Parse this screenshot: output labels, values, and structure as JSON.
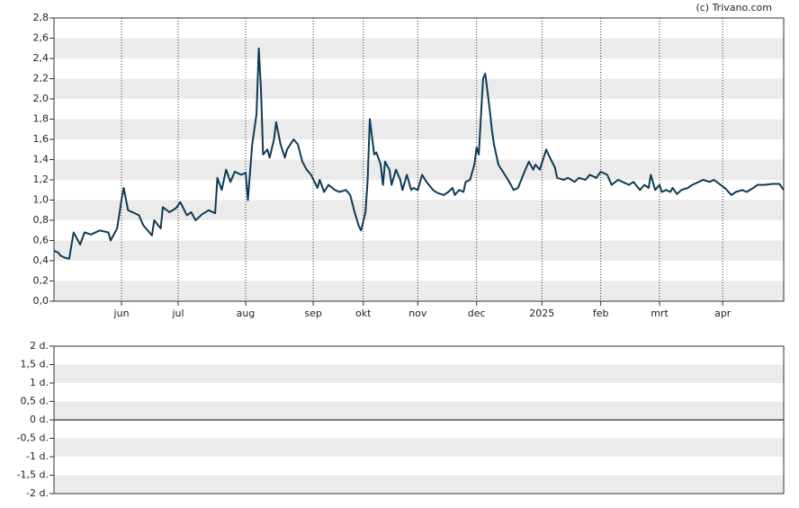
{
  "chart_data": [
    {
      "type": "line",
      "source": "(c) Trivano.com",
      "xlim": [
        0,
        335
      ],
      "xticks": [
        {
          "value": 31,
          "label": "jun"
        },
        {
          "value": 57,
          "label": "jul"
        },
        {
          "value": 88,
          "label": "aug"
        },
        {
          "value": 119,
          "label": "sep"
        },
        {
          "value": 142,
          "label": "okt"
        },
        {
          "value": 167,
          "label": "nov"
        },
        {
          "value": 194,
          "label": "dec"
        },
        {
          "value": 224,
          "label": "2025"
        },
        {
          "value": 251,
          "label": "feb"
        },
        {
          "value": 278,
          "label": "mrt"
        },
        {
          "value": 307,
          "label": "apr"
        }
      ],
      "ylim": [
        0,
        2.8
      ],
      "yticks": [
        {
          "value": 0,
          "label": "0,0"
        },
        {
          "value": 0.2,
          "label": "0,2"
        },
        {
          "value": 0.4,
          "label": "0,4"
        },
        {
          "value": 0.6,
          "label": "0,6"
        },
        {
          "value": 0.8,
          "label": "0,8"
        },
        {
          "value": 1.0,
          "label": "1,0"
        },
        {
          "value": 1.2,
          "label": "1,2"
        },
        {
          "value": 1.4,
          "label": "1,4"
        },
        {
          "value": 1.6,
          "label": "1,6"
        },
        {
          "value": 1.8,
          "label": "1,8"
        },
        {
          "value": 2.0,
          "label": "2,0"
        },
        {
          "value": 2.2,
          "label": "2,2"
        },
        {
          "value": 2.4,
          "label": "2,4"
        },
        {
          "value": 2.6,
          "label": "2,6"
        },
        {
          "value": 2.8,
          "label": "2,8"
        }
      ],
      "grid": true,
      "series": [
        {
          "color": "#0d3b55",
          "x": [
            0,
            2,
            3,
            5,
            7,
            9,
            12,
            14,
            17,
            21,
            25,
            26,
            29,
            31,
            32,
            34,
            36,
            39,
            41,
            45,
            46,
            49,
            50,
            53,
            56,
            58,
            61,
            63,
            65,
            68,
            71,
            74,
            75,
            77,
            79,
            81,
            83,
            86,
            88,
            89,
            91,
            93,
            94,
            95,
            96,
            98,
            99,
            101,
            102,
            104,
            106,
            107,
            110,
            112,
            114,
            116,
            118,
            121,
            122,
            124,
            126,
            129,
            131,
            134,
            136,
            138,
            140,
            141,
            143,
            144,
            145,
            147,
            148,
            150,
            151,
            152,
            154,
            155,
            157,
            159,
            160,
            162,
            164,
            165,
            167,
            169,
            171,
            174,
            176,
            179,
            181,
            183,
            184,
            186,
            188,
            189,
            191,
            193,
            194,
            195,
            197,
            198,
            200,
            201,
            202,
            204,
            207,
            209,
            211,
            213,
            216,
            218,
            220,
            221,
            223,
            226,
            227,
            230,
            231,
            234,
            236,
            239,
            241,
            244,
            246,
            249,
            251,
            254,
            256,
            259,
            261,
            264,
            266,
            269,
            271,
            273,
            274,
            276,
            278,
            279,
            281,
            283,
            284,
            286,
            288,
            291,
            293,
            296,
            298,
            301,
            303,
            306,
            308,
            311,
            313,
            316,
            318,
            321,
            323,
            326,
            330,
            333,
            335
          ],
          "values": [
            0.5,
            0.48,
            0.45,
            0.43,
            0.42,
            0.68,
            0.56,
            0.68,
            0.66,
            0.7,
            0.68,
            0.6,
            0.72,
            1.0,
            1.12,
            0.9,
            0.88,
            0.85,
            0.75,
            0.65,
            0.8,
            0.72,
            0.93,
            0.88,
            0.92,
            0.98,
            0.85,
            0.88,
            0.8,
            0.86,
            0.9,
            0.87,
            1.22,
            1.1,
            1.3,
            1.18,
            1.28,
            1.25,
            1.27,
            1.0,
            1.55,
            1.85,
            2.5,
            2.1,
            1.45,
            1.5,
            1.42,
            1.6,
            1.77,
            1.55,
            1.42,
            1.5,
            1.6,
            1.55,
            1.38,
            1.3,
            1.25,
            1.12,
            1.2,
            1.08,
            1.15,
            1.1,
            1.08,
            1.1,
            1.05,
            0.88,
            0.74,
            0.7,
            0.88,
            1.2,
            1.8,
            1.45,
            1.47,
            1.35,
            1.15,
            1.38,
            1.3,
            1.15,
            1.3,
            1.2,
            1.1,
            1.25,
            1.1,
            1.12,
            1.1,
            1.25,
            1.18,
            1.1,
            1.07,
            1.05,
            1.08,
            1.12,
            1.05,
            1.1,
            1.08,
            1.18,
            1.2,
            1.35,
            1.52,
            1.45,
            2.2,
            2.25,
            1.9,
            1.7,
            1.55,
            1.35,
            1.25,
            1.18,
            1.1,
            1.12,
            1.28,
            1.38,
            1.3,
            1.35,
            1.3,
            1.5,
            1.45,
            1.32,
            1.22,
            1.2,
            1.22,
            1.18,
            1.22,
            1.2,
            1.25,
            1.22,
            1.28,
            1.25,
            1.15,
            1.2,
            1.18,
            1.15,
            1.18,
            1.1,
            1.15,
            1.12,
            1.25,
            1.1,
            1.15,
            1.08,
            1.1,
            1.08,
            1.12,
            1.06,
            1.1,
            1.12,
            1.15,
            1.18,
            1.2,
            1.18,
            1.2,
            1.15,
            1.12,
            1.05,
            1.08,
            1.1,
            1.08,
            1.12,
            1.15,
            1.15,
            1.16,
            1.16,
            1.1
          ]
        }
      ]
    },
    {
      "type": "line",
      "ylim": [
        -2,
        2
      ],
      "yticks": [
        {
          "value": -2,
          "label": "-2 d."
        },
        {
          "value": -1.5,
          "label": "-1,5 d."
        },
        {
          "value": -1,
          "label": "-1 d."
        },
        {
          "value": -0.5,
          "label": "-0,5 d."
        },
        {
          "value": 0,
          "label": "0 d."
        },
        {
          "value": 0.5,
          "label": "0,5 d."
        },
        {
          "value": 1,
          "label": "1 d."
        },
        {
          "value": 1.5,
          "label": "1,5 d."
        },
        {
          "value": 2,
          "label": "2 d."
        }
      ],
      "grid": true,
      "series": []
    }
  ]
}
